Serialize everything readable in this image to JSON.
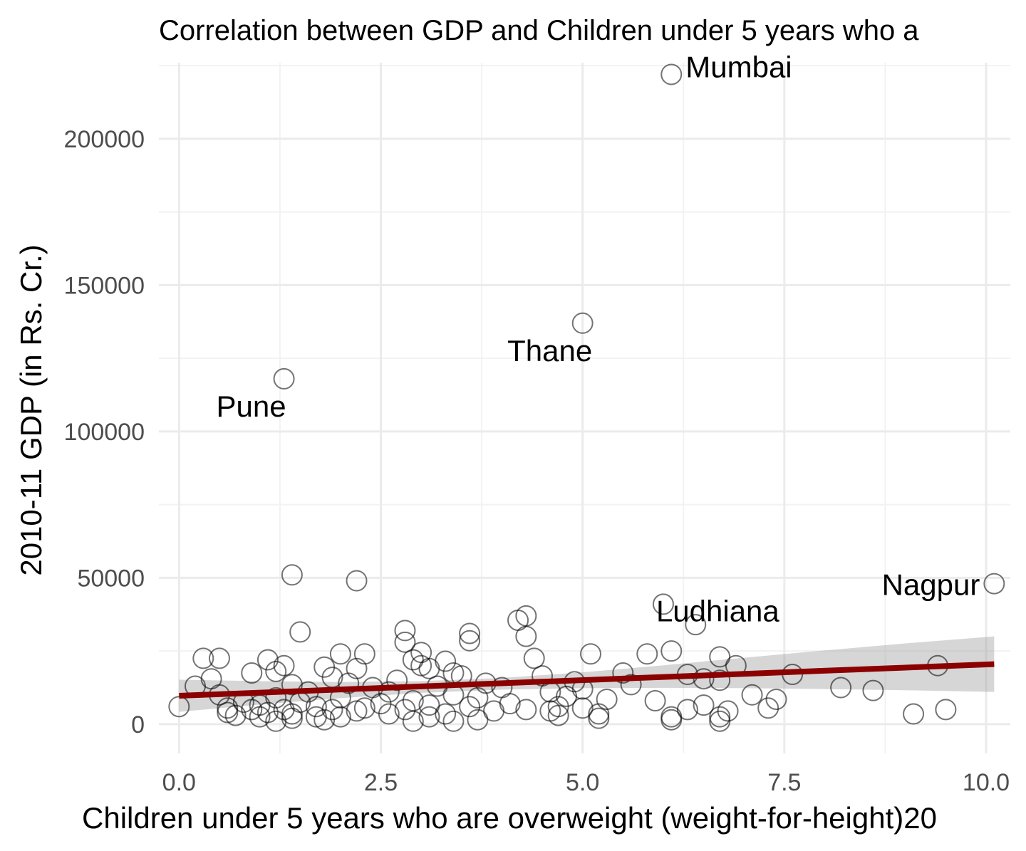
{
  "chart_data": {
    "type": "scatter",
    "title": "Correlation between GDP and Children under 5 years who a",
    "xlabel": "Children under 5 years who are overweight (weight-for-height)20",
    "ylabel": "2010-11 GDP (in Rs. Cr.)",
    "xlim": [
      -0.25,
      10.3
    ],
    "ylim": [
      -10000,
      226000
    ],
    "x_ticks": [
      "0.0",
      "2.5",
      "5.0",
      "7.5",
      "10.0"
    ],
    "x_tick_values": [
      0,
      2.5,
      5,
      7.5,
      10
    ],
    "y_ticks": [
      "0",
      "50000",
      "100000",
      "150000",
      "200000"
    ],
    "y_tick_values": [
      0,
      50000,
      100000,
      150000,
      200000
    ],
    "grid": true,
    "legend": "none",
    "point_style": "hollow-circle",
    "points": [
      [
        6.1,
        222000
      ],
      [
        5.0,
        137000
      ],
      [
        1.3,
        118000
      ],
      [
        1.4,
        51000
      ],
      [
        2.2,
        49000
      ],
      [
        10.1,
        48000
      ],
      [
        6.0,
        41000
      ],
      [
        4.3,
        37000
      ],
      [
        4.2,
        35500
      ],
      [
        6.4,
        34000
      ],
      [
        1.5,
        31500
      ],
      [
        2.8,
        32000
      ],
      [
        3.6,
        31000
      ],
      [
        4.3,
        30000
      ],
      [
        2.8,
        28000
      ],
      [
        3.6,
        28500
      ],
      [
        5.8,
        24000
      ],
      [
        6.1,
        25000
      ],
      [
        3.0,
        24500
      ],
      [
        5.1,
        24000
      ],
      [
        2.3,
        24000
      ],
      [
        2.0,
        24000
      ],
      [
        0.3,
        22500
      ],
      [
        0.5,
        22500
      ],
      [
        6.7,
        23000
      ],
      [
        1.1,
        22000
      ],
      [
        2.9,
        22000
      ],
      [
        3.3,
        21500
      ],
      [
        4.4,
        22500
      ],
      [
        3.0,
        20000
      ],
      [
        6.9,
        20000
      ],
      [
        9.4,
        20000
      ],
      [
        1.3,
        20000
      ],
      [
        1.8,
        19500
      ],
      [
        3.1,
        19000
      ],
      [
        2.2,
        19000
      ],
      [
        1.2,
        18000
      ],
      [
        0.9,
        17500
      ],
      [
        7.6,
        17000
      ],
      [
        3.4,
        17500
      ],
      [
        3.5,
        16500
      ],
      [
        5.5,
        17500
      ],
      [
        6.3,
        17000
      ],
      [
        4.5,
        16500
      ],
      [
        1.9,
        16000
      ],
      [
        0.4,
        15500
      ],
      [
        6.5,
        15500
      ],
      [
        6.7,
        15000
      ],
      [
        2.7,
        15000
      ],
      [
        4.9,
        14500
      ],
      [
        2.1,
        14000
      ],
      [
        3.8,
        14000
      ],
      [
        5.6,
        13500
      ],
      [
        0.2,
        13000
      ],
      [
        8.2,
        12500
      ],
      [
        1.4,
        13500
      ],
      [
        3.2,
        13000
      ],
      [
        2.4,
        12500
      ],
      [
        4.0,
        12500
      ],
      [
        5.0,
        12000
      ],
      [
        8.6,
        11500
      ],
      [
        1.6,
        11000
      ],
      [
        2.6,
        11000
      ],
      [
        4.6,
        11000
      ],
      [
        7.1,
        10000
      ],
      [
        0.5,
        10000
      ],
      [
        3.4,
        10000
      ],
      [
        4.8,
        9500
      ],
      [
        1.2,
        9000
      ],
      [
        2.0,
        9000
      ],
      [
        3.7,
        9000
      ],
      [
        5.3,
        8500
      ],
      [
        5.9,
        8000
      ],
      [
        7.4,
        8500
      ],
      [
        2.9,
        8000
      ],
      [
        0.8,
        7500
      ],
      [
        1.5,
        7500
      ],
      [
        2.5,
        7000
      ],
      [
        4.1,
        7000
      ],
      [
        1.0,
        6500
      ],
      [
        3.1,
        6500
      ],
      [
        4.7,
        6000
      ],
      [
        6.5,
        6500
      ],
      [
        0.0,
        6000
      ],
      [
        0.6,
        5500
      ],
      [
        1.7,
        6000
      ],
      [
        2.3,
        5500
      ],
      [
        3.6,
        6000
      ],
      [
        5.0,
        5500
      ],
      [
        7.3,
        5500
      ],
      [
        0.9,
        5000
      ],
      [
        1.3,
        5000
      ],
      [
        1.9,
        5000
      ],
      [
        2.8,
        5000
      ],
      [
        4.3,
        5000
      ],
      [
        6.3,
        5000
      ],
      [
        9.5,
        5000
      ],
      [
        0.6,
        4000
      ],
      [
        1.1,
        4000
      ],
      [
        2.2,
        4500
      ],
      [
        3.9,
        4500
      ],
      [
        4.6,
        4500
      ],
      [
        6.8,
        4500
      ],
      [
        1.4,
        3500
      ],
      [
        2.6,
        3500
      ],
      [
        3.3,
        3500
      ],
      [
        5.2,
        3500
      ],
      [
        9.1,
        3500
      ],
      [
        1.0,
        2500
      ],
      [
        1.7,
        2500
      ],
      [
        3.1,
        2500
      ],
      [
        6.1,
        2500
      ],
      [
        6.7,
        2500
      ],
      [
        1.4,
        2000
      ],
      [
        2.0,
        2500
      ],
      [
        4.7,
        3000
      ],
      [
        0.7,
        3000
      ],
      [
        2.9,
        1000
      ],
      [
        3.4,
        1000
      ],
      [
        1.8,
        1500
      ],
      [
        6.1,
        1500
      ],
      [
        5.2,
        2000
      ],
      [
        3.7,
        1500
      ],
      [
        1.2,
        1000
      ],
      [
        6.7,
        1000
      ]
    ],
    "labels": [
      {
        "text": "Mumbai",
        "x": 6.1,
        "y": 222000
      },
      {
        "text": "Thane",
        "x": 5.0,
        "y": 137000
      },
      {
        "text": "Pune",
        "x": 1.3,
        "y": 118000
      },
      {
        "text": "Ludhiana",
        "x": 6.0,
        "y": 41000
      },
      {
        "text": "Nagpur",
        "x": 10.1,
        "y": 48000
      }
    ],
    "fit": {
      "method": "linear",
      "color": "#8b0000",
      "x": [
        0,
        10.1
      ],
      "y": [
        9700,
        20500
      ],
      "band": {
        "x": [
          0,
          1,
          2,
          3,
          4,
          5,
          6,
          7,
          8,
          9,
          10.1
        ],
        "lower": [
          4200,
          6700,
          8900,
          10700,
          11800,
          12300,
          12400,
          12300,
          12000,
          11600,
          11000
        ],
        "upper": [
          15200,
          14700,
          14400,
          14700,
          15800,
          17700,
          20100,
          22700,
          25200,
          27600,
          30000
        ]
      }
    }
  }
}
